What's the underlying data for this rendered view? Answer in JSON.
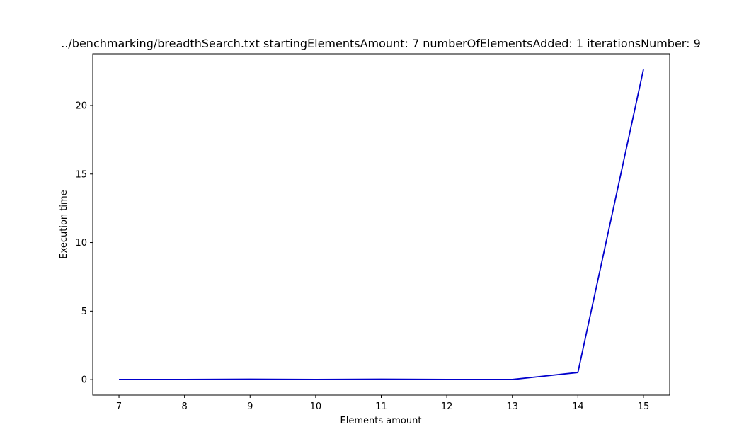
{
  "chart_data": {
    "type": "line",
    "title": "../benchmarking/breadthSearch.txt startingElementsAmount: 7 numberOfElementsAdded: 1 iterationsNumber: 9",
    "xlabel": "Elements amount",
    "ylabel": "Execution time",
    "x": [
      7,
      8,
      9,
      10,
      11,
      12,
      13,
      14,
      15
    ],
    "xticks": [
      7,
      8,
      9,
      10,
      11,
      12,
      13,
      14,
      15
    ],
    "yticks": [
      0,
      5,
      10,
      15,
      20
    ],
    "xlim": [
      6.6,
      15.4
    ],
    "ylim": [
      -1.13,
      23.77
    ],
    "grid": false,
    "legend": "none",
    "series": [
      {
        "color": "#0000cc",
        "values": [
          0.01,
          0.01,
          0.03,
          0.01,
          0.03,
          0.01,
          0.01,
          0.52,
          22.63
        ]
      }
    ]
  }
}
